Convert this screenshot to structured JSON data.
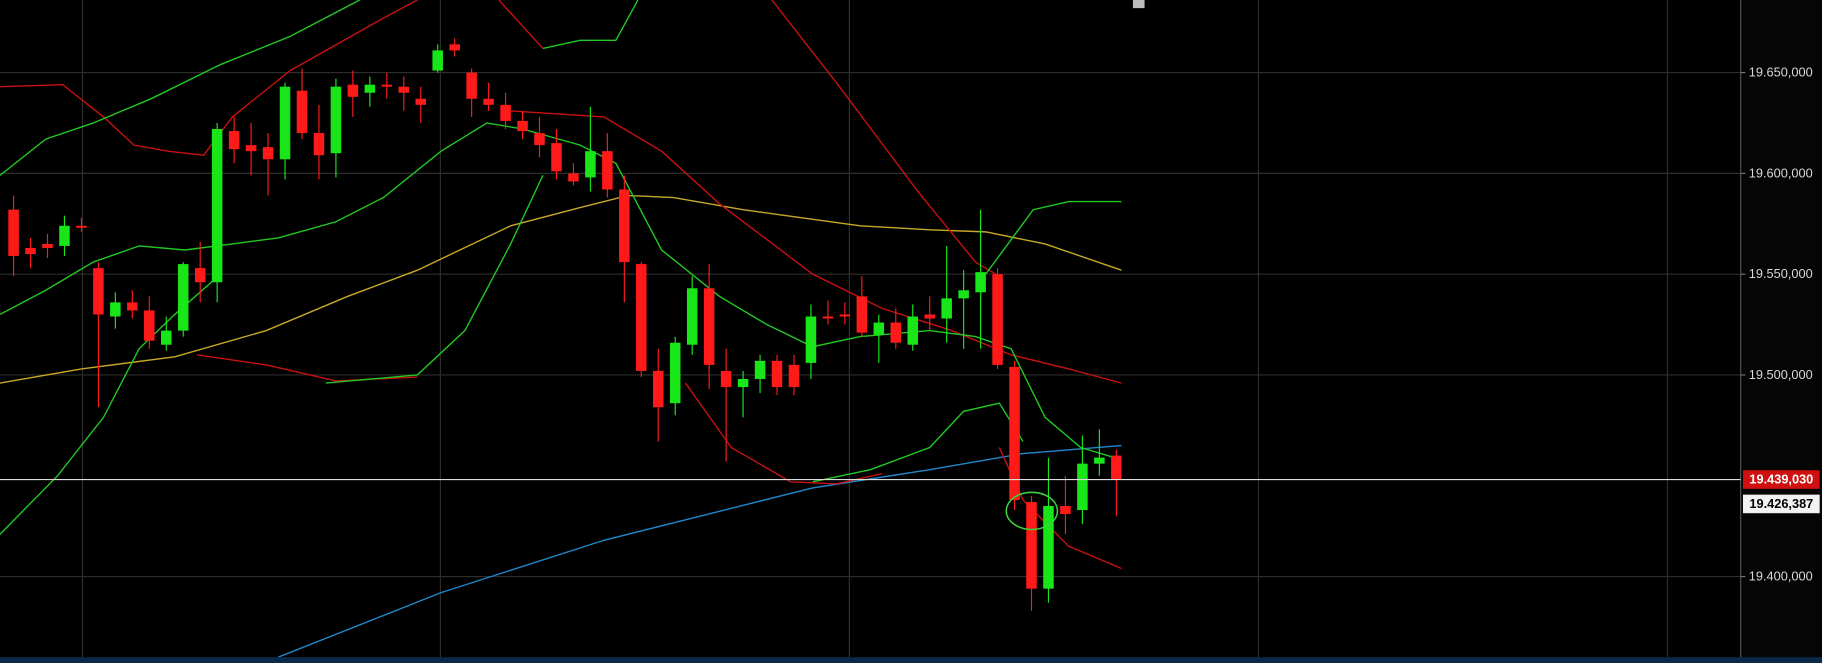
{
  "chart_data": {
    "type": "candlestick",
    "xlim": [
      -0.8,
      101.8
    ],
    "ylim": [
      19360000,
      19686000
    ],
    "yticks": [
      {
        "value": 19400000,
        "label": "19.400,000"
      },
      {
        "value": 19500000,
        "label": "19.500,000"
      },
      {
        "value": 19550000,
        "label": "19.550,000"
      },
      {
        "value": 19600000,
        "label": "19.600,000"
      },
      {
        "value": 19650000,
        "label": "19.650,000"
      }
    ],
    "grid": true,
    "up_color": "#19e619",
    "down_color": "#ff1a1a",
    "open": [
      19582000,
      19563000,
      19565000,
      19564000,
      19574000,
      19553000,
      19529000,
      19536000,
      19532000,
      19515000,
      19522000,
      19553000,
      19546000,
      19621000,
      19614000,
      19613000,
      19607000,
      19641000,
      19620000,
      19610000,
      19644000,
      19640000,
      19644000,
      19643000,
      19637000,
      19651000,
      19664000,
      19650000,
      19637000,
      19634000,
      19626000,
      19620000,
      19615000,
      19600000,
      19598000,
      19611000,
      19592000,
      19555000,
      19502000,
      19486000,
      19515000,
      19543000,
      19502000,
      19494000,
      19498000,
      19507000,
      19505000,
      19506000,
      19529000,
      19530000,
      19539000,
      19520000,
      19526000,
      19515000,
      19530000,
      19528000,
      19538000,
      19541000,
      19550000,
      19504000,
      19437000,
      19394000,
      19435000,
      19433000,
      19456000,
      19460000
    ],
    "high": [
      19589000,
      19568000,
      19570000,
      19579000,
      19578000,
      19556000,
      19541000,
      19542000,
      19539000,
      19529000,
      19556000,
      19566000,
      19625000,
      19628000,
      19625000,
      19620000,
      19645000,
      19652000,
      19634000,
      19647000,
      19651000,
      19648000,
      19650000,
      19648000,
      19643000,
      19664000,
      19667000,
      19652000,
      19645000,
      19640000,
      19631000,
      19628000,
      19622000,
      19605000,
      19633000,
      19620000,
      19599000,
      19556000,
      19513000,
      19519000,
      19549000,
      19555000,
      19513000,
      19502000,
      19510000,
      19510000,
      19510000,
      19535000,
      19537000,
      19536000,
      19549000,
      19530000,
      19533000,
      19535000,
      19539000,
      19564000,
      19552000,
      19582000,
      19553000,
      19507000,
      19440000,
      19459000,
      19450000,
      19470000,
      19473000,
      19463000
    ],
    "low": [
      19549000,
      19553000,
      19558000,
      19559000,
      19571000,
      19484000,
      19523000,
      19528000,
      19513000,
      19512000,
      19519000,
      19536000,
      19536000,
      19605000,
      19599000,
      19589000,
      19597000,
      19617000,
      19597000,
      19598000,
      19628000,
      19633000,
      19637000,
      19631000,
      19625000,
      19650000,
      19658000,
      19628000,
      19631000,
      19622000,
      19617000,
      19608000,
      19597000,
      19594000,
      19591000,
      19588000,
      19536000,
      19499000,
      19467000,
      19480000,
      19510000,
      19493000,
      19457000,
      19479000,
      19491000,
      19490000,
      19490000,
      19498000,
      19525000,
      19525000,
      19519000,
      19506000,
      19513000,
      19512000,
      19522000,
      19516000,
      19513000,
      19513000,
      19503000,
      19433000,
      19383000,
      19387000,
      19421000,
      19426000,
      19450000,
      19430000
    ],
    "close": [
      19559000,
      19560000,
      19563000,
      19574000,
      19573000,
      19530000,
      19536000,
      19532000,
      19517000,
      19522000,
      19555000,
      19546000,
      19622000,
      19612000,
      19611000,
      19607000,
      19643000,
      19620000,
      19609000,
      19643000,
      19638000,
      19644000,
      19643000,
      19640000,
      19634000,
      19661000,
      19661000,
      19637000,
      19634000,
      19626000,
      19621000,
      19614000,
      19601000,
      19596000,
      19611000,
      19592000,
      19556000,
      19502000,
      19484000,
      19516000,
      19543000,
      19505000,
      19494000,
      19498000,
      19507000,
      19494000,
      19494000,
      19529000,
      19528000,
      19529000,
      19521000,
      19526000,
      19516000,
      19529000,
      19528000,
      19538000,
      19542000,
      19551000,
      19505000,
      19438000,
      19394000,
      19435000,
      19431000,
      19456000,
      19459000,
      19448000
    ],
    "overlays": [
      {
        "color": "#c8a828",
        "x": [
          -0.8,
          4.0,
          9.5,
          14.9,
          19.7,
          23.8,
          29.3,
          33.4,
          36.2,
          38.9,
          43.0,
          49.9,
          54.0,
          57.3,
          60.8,
          65.3
        ],
        "values": [
          19496000,
          19503000,
          19509000,
          19522000,
          19539000,
          19552000,
          19574000,
          19583000,
          19589000,
          19588000,
          19582000,
          19574000,
          19572000,
          19571000,
          19565000,
          19552000
        ]
      },
      {
        "color": "#2088c8",
        "x": [
          15.6,
          25.2,
          34.8,
          47.1,
          54.0,
          59.5,
          65.3
        ],
        "values": [
          19360000,
          19392000,
          19418000,
          19444000,
          19453000,
          19461000,
          19465000
        ]
      },
      {
        "color": "#c81010",
        "x": [
          -0.8,
          2.9,
          5.3,
          7.1,
          9.1,
          11.2,
          12.9,
          16.3,
          21.8,
          23.8
        ],
        "values": [
          19643000,
          19644000,
          19628000,
          19614000,
          19611000,
          19609000,
          19628000,
          19651000,
          19677000,
          19686000
        ]
      },
      {
        "color": "#c81010",
        "x": [
          28.6,
          31.2
        ],
        "values": [
          19686000,
          19662000
        ]
      },
      {
        "color": "#c81010",
        "x": [
          44.7,
          48.5,
          53.3,
          56.7,
          58.1
        ],
        "values": [
          19686000,
          19645000,
          19591000,
          19556000,
          19549000
        ]
      },
      {
        "color": "#c81010",
        "x": [
          29.3,
          34.8,
          38.2,
          41.6,
          47.1,
          51.2,
          55.3,
          58.8,
          62.2,
          65.3
        ],
        "values": [
          19631000,
          19628000,
          19611000,
          19585000,
          19550000,
          19533000,
          19522000,
          19510000,
          19503000,
          19496000
        ]
      },
      {
        "color": "#c81010",
        "x": [
          10.8,
          14.9,
          19.0,
          23.8
        ],
        "values": [
          19510000,
          19505000,
          19497000,
          19499000
        ]
      },
      {
        "color": "#c81010",
        "x": [
          39.6,
          42.3,
          45.8,
          48.5,
          51.2
        ],
        "values": [
          19496000,
          19464000,
          19447000,
          19446000,
          19451000
        ]
      },
      {
        "color": "#c81010",
        "x": [
          58.1,
          59.5,
          62.2,
          65.3
        ],
        "values": [
          19464000,
          19438000,
          19415000,
          19404000
        ]
      },
      {
        "color": "#22c822",
        "x": [
          -0.8,
          1.9,
          4.7,
          7.4,
          10.1,
          12.9,
          15.6,
          19.0,
          21.8,
          25.2,
          27.9,
          30.0,
          33.4,
          35.5,
          38.2,
          41.6,
          44.4,
          47.1,
          49.9,
          54.0,
          56.7,
          58.8,
          60.8,
          62.9,
          65.3
        ],
        "values": [
          19530000,
          19542000,
          19556000,
          19564000,
          19562000,
          19565000,
          19568000,
          19576000,
          19588000,
          19611000,
          19625000,
          19622000,
          19614000,
          19605000,
          19562000,
          19539000,
          19525000,
          19514000,
          19519000,
          19522000,
          19519000,
          19513000,
          19479000,
          19464000,
          19458000
        ]
      },
      {
        "color": "#22c822",
        "x": [
          -0.8,
          1.9,
          4.7,
          8.1,
          12.2,
          16.3,
          20.4
        ],
        "values": [
          19599000,
          19617000,
          19625000,
          19637000,
          19654000,
          19668000,
          19686000
        ]
      },
      {
        "color": "#22c822",
        "x": [
          31.2,
          33.4,
          35.5,
          36.8
        ],
        "values": [
          19662000,
          19666000,
          19666000,
          19686000
        ]
      },
      {
        "color": "#22c822",
        "x": [
          -0.8,
          2.6,
          5.3,
          7.4,
          9.5,
          12.2
        ],
        "values": [
          19421000,
          19450000,
          19479000,
          19513000,
          19530000,
          19550000
        ]
      },
      {
        "color": "#22c822",
        "x": [
          18.4,
          23.8,
          26.6,
          29.3,
          31.2
        ],
        "values": [
          19496000,
          19500000,
          19522000,
          19565000,
          19599000
        ]
      },
      {
        "color": "#22c822",
        "x": [
          47.1,
          50.5,
          54.0,
          56.0,
          58.1,
          59.5
        ],
        "values": [
          19447000,
          19453000,
          19464000,
          19482000,
          19486000,
          19467000
        ]
      },
      {
        "color": "#22c822",
        "x": [
          57.3,
          60.1,
          62.2,
          65.3
        ],
        "values": [
          19550000,
          19582000,
          19586000,
          19586000
        ]
      }
    ],
    "price_labels": [
      "19.439,030",
      "19.426,387"
    ]
  }
}
